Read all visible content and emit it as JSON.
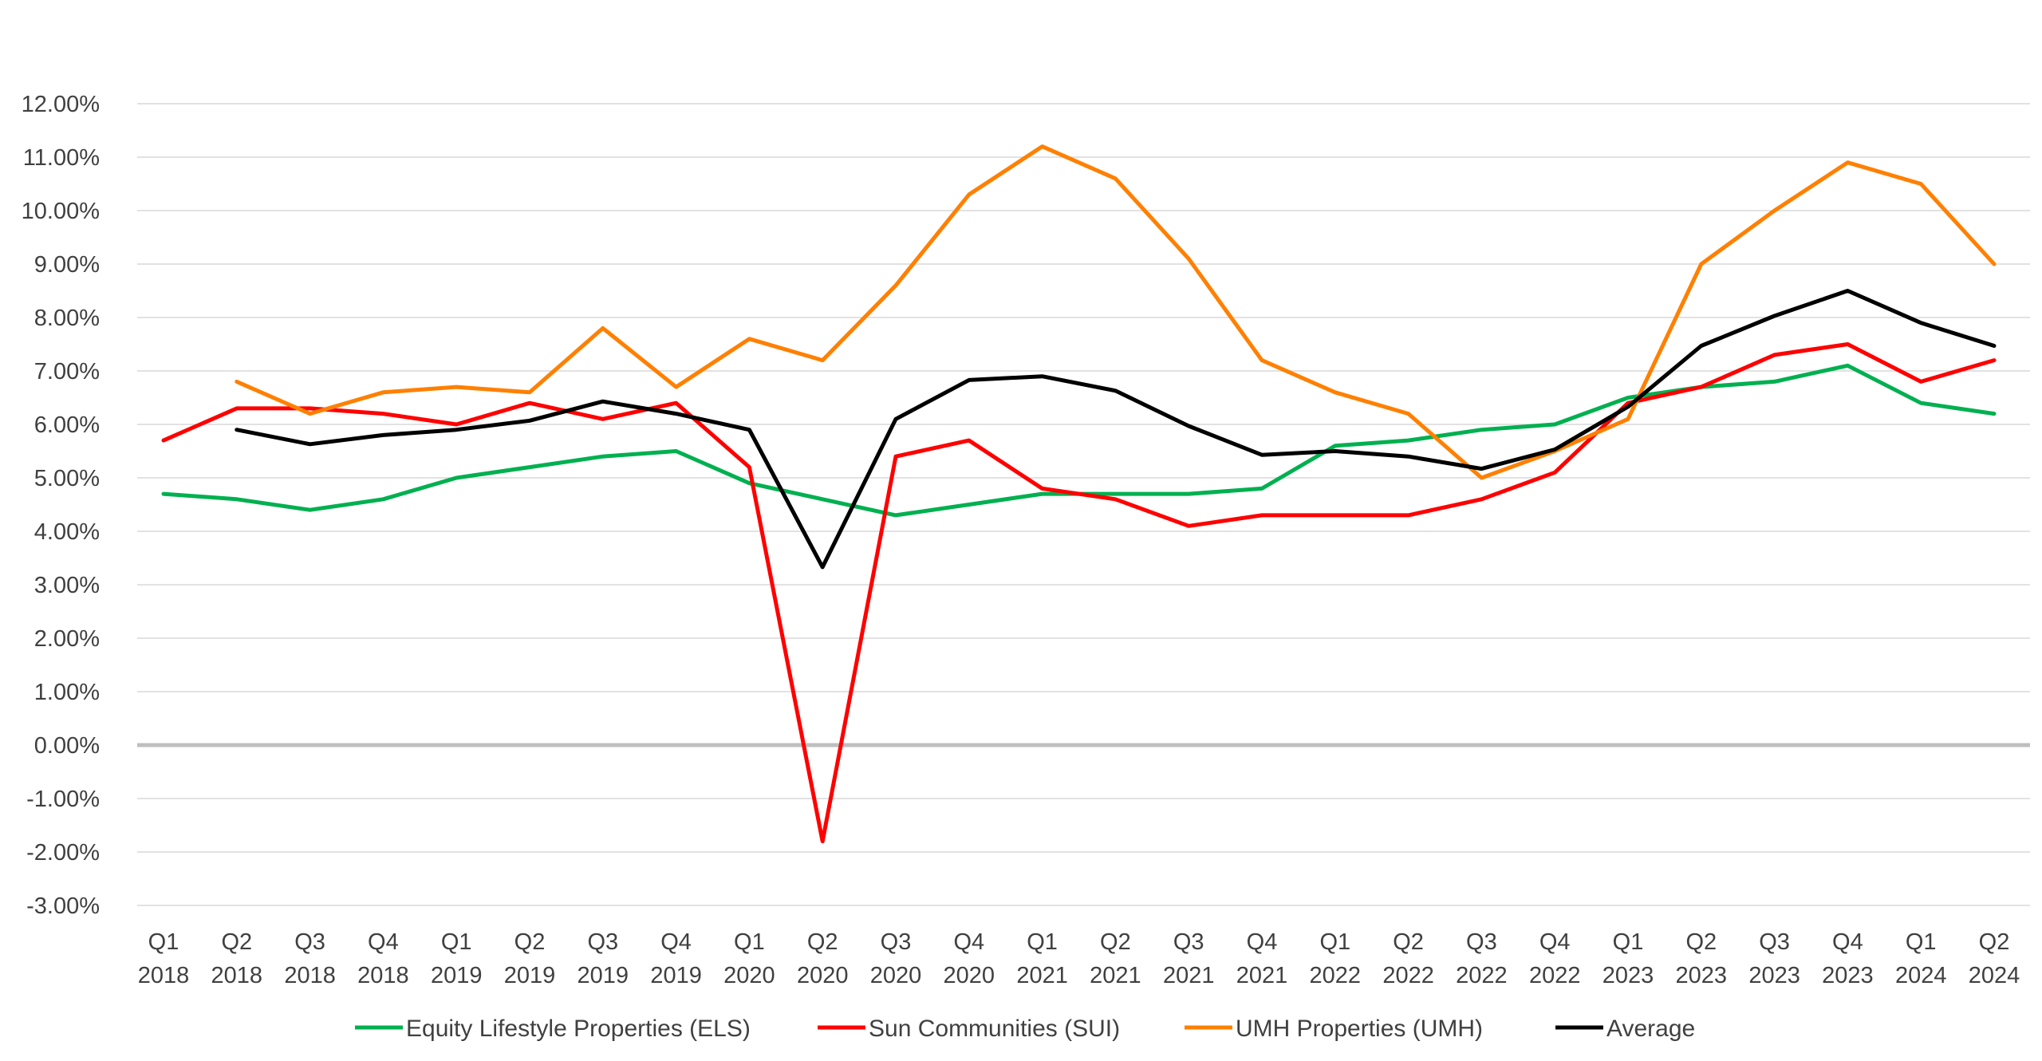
{
  "chart_data": {
    "type": "line",
    "title": "",
    "xlabel": "",
    "ylabel": "",
    "ylim": [
      -0.03,
      0.12
    ],
    "y_ticks": [
      "12.00%",
      "11.00%",
      "10.00%",
      "9.00%",
      "8.00%",
      "7.00%",
      "6.00%",
      "5.00%",
      "4.00%",
      "3.00%",
      "2.00%",
      "1.00%",
      "0.00%",
      "-1.00%",
      "-2.00%",
      "-3.00%"
    ],
    "grid": true,
    "legend_position": "bottom",
    "categories": [
      [
        "Q1",
        "2018"
      ],
      [
        "Q2",
        "2018"
      ],
      [
        "Q3",
        "2018"
      ],
      [
        "Q4",
        "2018"
      ],
      [
        "Q1",
        "2019"
      ],
      [
        "Q2",
        "2019"
      ],
      [
        "Q3",
        "2019"
      ],
      [
        "Q4",
        "2019"
      ],
      [
        "Q1",
        "2020"
      ],
      [
        "Q2",
        "2020"
      ],
      [
        "Q3",
        "2020"
      ],
      [
        "Q4",
        "2020"
      ],
      [
        "Q1",
        "2021"
      ],
      [
        "Q2",
        "2021"
      ],
      [
        "Q3",
        "2021"
      ],
      [
        "Q4",
        "2021"
      ],
      [
        "Q1",
        "2022"
      ],
      [
        "Q2",
        "2022"
      ],
      [
        "Q3",
        "2022"
      ],
      [
        "Q4",
        "2022"
      ],
      [
        "Q1",
        "2023"
      ],
      [
        "Q2",
        "2023"
      ],
      [
        "Q3",
        "2023"
      ],
      [
        "Q4",
        "2023"
      ],
      [
        "Q1",
        "2024"
      ],
      [
        "Q2",
        "2024"
      ]
    ],
    "series": [
      {
        "name": "Equity Lifestyle Properties (ELS)",
        "color": "#00b050",
        "values": [
          0.047,
          0.046,
          0.044,
          0.046,
          0.05,
          0.052,
          0.054,
          0.055,
          0.049,
          0.046,
          0.043,
          0.045,
          0.047,
          0.047,
          0.047,
          0.048,
          0.056,
          0.057,
          0.059,
          0.06,
          0.065,
          0.067,
          0.068,
          0.071,
          0.064,
          0.062
        ]
      },
      {
        "name": "Sun Communities (SUI)",
        "color": "#ff0000",
        "values": [
          0.057,
          0.063,
          0.063,
          0.062,
          0.06,
          0.064,
          0.061,
          0.064,
          0.052,
          -0.018,
          0.054,
          0.057,
          0.048,
          0.046,
          0.041,
          0.043,
          0.043,
          0.043,
          0.046,
          0.051,
          0.064,
          0.067,
          0.073,
          0.075,
          0.068,
          0.072
        ]
      },
      {
        "name": "UMH Properties (UMH)",
        "color": "#ff8000",
        "values": [
          null,
          0.068,
          0.062,
          0.066,
          0.067,
          0.066,
          0.078,
          0.067,
          0.076,
          0.072,
          0.086,
          0.103,
          0.112,
          0.106,
          0.091,
          0.072,
          0.066,
          0.062,
          0.05,
          0.055,
          0.061,
          0.09,
          0.1,
          0.109,
          0.105,
          0.09
        ]
      },
      {
        "name": "Average",
        "color": "#000000",
        "values": [
          null,
          0.059,
          0.0563,
          0.058,
          0.059,
          0.0607,
          0.0643,
          0.062,
          0.059,
          0.0333,
          0.061,
          0.0683,
          0.069,
          0.0663,
          0.0597,
          0.0543,
          0.055,
          0.054,
          0.0517,
          0.0553,
          0.0633,
          0.0747,
          0.0803,
          0.085,
          0.079,
          0.0747
        ]
      }
    ]
  }
}
